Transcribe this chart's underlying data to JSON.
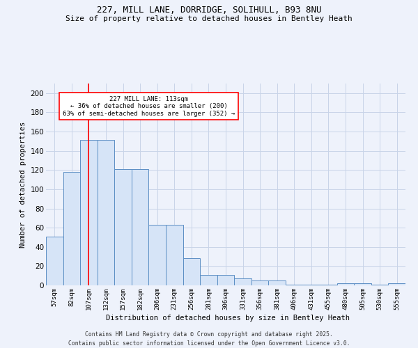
{
  "title1": "227, MILL LANE, DORRIDGE, SOLIHULL, B93 8NU",
  "title2": "Size of property relative to detached houses in Bentley Heath",
  "xlabel": "Distribution of detached houses by size in Bentley Heath",
  "ylabel": "Number of detached properties",
  "categories": [
    "57sqm",
    "82sqm",
    "107sqm",
    "132sqm",
    "157sqm",
    "182sqm",
    "206sqm",
    "231sqm",
    "256sqm",
    "281sqm",
    "306sqm",
    "331sqm",
    "356sqm",
    "381sqm",
    "406sqm",
    "431sqm",
    "455sqm",
    "480sqm",
    "505sqm",
    "530sqm",
    "555sqm"
  ],
  "values": [
    51,
    118,
    151,
    151,
    121,
    121,
    63,
    63,
    28,
    11,
    11,
    7,
    5,
    5,
    1,
    1,
    1,
    2,
    2,
    1,
    2
  ],
  "bar_color": "#d6e4f7",
  "bar_edge_color": "#5b8ec4",
  "red_line_index": 2,
  "annotation_title": "227 MILL LANE: 113sqm",
  "annotation_line1": "← 36% of detached houses are smaller (200)",
  "annotation_line2": "63% of semi-detached houses are larger (352) →",
  "footer1": "Contains HM Land Registry data © Crown copyright and database right 2025.",
  "footer2": "Contains public sector information licensed under the Open Government Licence v3.0.",
  "ylim": [
    0,
    210
  ],
  "yticks": [
    0,
    20,
    40,
    60,
    80,
    100,
    120,
    140,
    160,
    180,
    200
  ],
  "bg_color": "#eef2fb",
  "grid_color": "#c8d4e8"
}
